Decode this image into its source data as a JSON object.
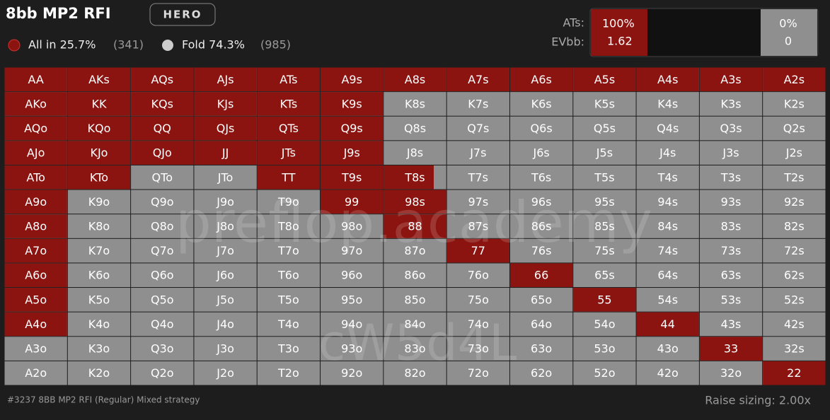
{
  "header": {
    "title": "8bb MP2 RFI",
    "badge": "HERO",
    "legend": [
      {
        "label": "All in 25.7%",
        "count": "(341)"
      },
      {
        "label": "Fold 74.3%",
        "count": "(985)"
      }
    ]
  },
  "hand_info": {
    "hand_label": "ATs:",
    "ev_label": "EVbb:",
    "allin": {
      "freq": "100%",
      "ev": "1.62"
    },
    "fold": {
      "freq": "0%",
      "ev": "0"
    }
  },
  "grid": {
    "hands": [
      [
        "AA",
        "AKs",
        "AQs",
        "AJs",
        "ATs",
        "A9s",
        "A8s",
        "A7s",
        "A6s",
        "A5s",
        "A4s",
        "A3s",
        "A2s"
      ],
      [
        "AKo",
        "KK",
        "KQs",
        "KJs",
        "KTs",
        "K9s",
        "K8s",
        "K7s",
        "K6s",
        "K5s",
        "K4s",
        "K3s",
        "K2s"
      ],
      [
        "AQo",
        "KQo",
        "QQ",
        "QJs",
        "QTs",
        "Q9s",
        "Q8s",
        "Q7s",
        "Q6s",
        "Q5s",
        "Q4s",
        "Q3s",
        "Q2s"
      ],
      [
        "AJo",
        "KJo",
        "QJo",
        "JJ",
        "JTs",
        "J9s",
        "J8s",
        "J7s",
        "J6s",
        "J5s",
        "J4s",
        "J3s",
        "J2s"
      ],
      [
        "ATo",
        "KTo",
        "QTo",
        "JTo",
        "TT",
        "T9s",
        "T8s",
        "T7s",
        "T6s",
        "T5s",
        "T4s",
        "T3s",
        "T2s"
      ],
      [
        "A9o",
        "K9o",
        "Q9o",
        "J9o",
        "T9o",
        "99",
        "98s",
        "97s",
        "96s",
        "95s",
        "94s",
        "93s",
        "92s"
      ],
      [
        "A8o",
        "K8o",
        "Q8o",
        "J8o",
        "T8o",
        "98o",
        "88",
        "87s",
        "86s",
        "85s",
        "84s",
        "83s",
        "82s"
      ],
      [
        "A7o",
        "K7o",
        "Q7o",
        "J7o",
        "T7o",
        "97o",
        "87o",
        "77",
        "76s",
        "75s",
        "74s",
        "73s",
        "72s"
      ],
      [
        "A6o",
        "K6o",
        "Q6o",
        "J6o",
        "T6o",
        "96o",
        "86o",
        "76o",
        "66",
        "65s",
        "64s",
        "63s",
        "62s"
      ],
      [
        "A5o",
        "K5o",
        "Q5o",
        "J5o",
        "T5o",
        "95o",
        "85o",
        "75o",
        "65o",
        "55",
        "54s",
        "53s",
        "52s"
      ],
      [
        "A4o",
        "K4o",
        "Q4o",
        "J4o",
        "T4o",
        "94o",
        "84o",
        "74o",
        "64o",
        "54o",
        "44",
        "43s",
        "42s"
      ],
      [
        "A3o",
        "K3o",
        "Q3o",
        "J3o",
        "T3o",
        "93o",
        "83o",
        "73o",
        "63o",
        "53o",
        "43o",
        "33",
        "32s"
      ],
      [
        "A2o",
        "K2o",
        "Q2o",
        "J2o",
        "T2o",
        "92o",
        "82o",
        "72o",
        "62o",
        "52o",
        "42o",
        "32o",
        "22"
      ]
    ],
    "allin": [
      [
        100,
        100,
        100,
        100,
        100,
        100,
        100,
        100,
        100,
        100,
        100,
        100,
        100
      ],
      [
        100,
        100,
        100,
        100,
        100,
        100,
        0,
        0,
        0,
        0,
        0,
        0,
        0
      ],
      [
        100,
        100,
        100,
        100,
        100,
        100,
        0,
        0,
        0,
        0,
        0,
        0,
        0
      ],
      [
        100,
        100,
        100,
        100,
        100,
        100,
        0,
        0,
        0,
        0,
        0,
        0,
        0
      ],
      [
        100,
        100,
        0,
        0,
        100,
        100,
        80,
        0,
        0,
        0,
        0,
        0,
        0
      ],
      [
        100,
        0,
        0,
        0,
        0,
        100,
        100,
        0,
        0,
        0,
        0,
        0,
        0
      ],
      [
        100,
        0,
        0,
        0,
        0,
        0,
        100,
        0,
        0,
        0,
        0,
        0,
        0
      ],
      [
        100,
        0,
        0,
        0,
        0,
        0,
        0,
        100,
        0,
        0,
        0,
        0,
        0
      ],
      [
        100,
        0,
        0,
        0,
        0,
        0,
        0,
        0,
        100,
        0,
        0,
        0,
        0
      ],
      [
        100,
        0,
        0,
        0,
        0,
        0,
        0,
        0,
        0,
        100,
        0,
        0,
        0
      ],
      [
        100,
        0,
        0,
        0,
        0,
        0,
        0,
        0,
        0,
        0,
        100,
        0,
        0
      ],
      [
        0,
        0,
        0,
        0,
        0,
        0,
        0,
        0,
        0,
        0,
        0,
        100,
        0
      ],
      [
        0,
        0,
        0,
        0,
        0,
        0,
        0,
        0,
        0,
        0,
        0,
        0,
        100
      ]
    ]
  },
  "watermark": [
    "preflop.academy",
    "cW5d4L"
  ],
  "footer": {
    "left": "#3237 8BB MP2 RFI (Regular) Mixed strategy",
    "right": "Raise sizing: 2.00x"
  }
}
